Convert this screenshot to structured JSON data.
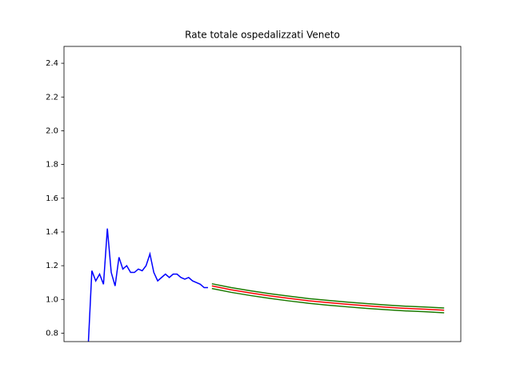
{
  "chart_data": {
    "type": "line",
    "title": "Rate totale ospedalizzati Veneto",
    "xlim": [
      -6.2,
      96.3
    ],
    "ylim": [
      0.75,
      2.5
    ],
    "yticks": [
      0.8,
      {
        "value": 1.0,
        "label": "1.0"
      },
      1.2,
      1.4,
      1.6,
      1.8,
      {
        "value": 2.0,
        "label": "2.0"
      },
      2.2,
      2.4
    ],
    "series": [
      {
        "color": "#0000ff",
        "x": [
          0,
          1,
          2,
          3,
          4,
          5,
          6,
          7,
          8,
          9,
          10,
          11,
          12,
          13,
          14,
          15,
          16,
          17,
          18,
          19,
          20,
          21,
          22,
          23,
          24,
          25,
          26,
          27,
          28,
          29,
          30,
          31
        ],
        "values": [
          0.7,
          1.17,
          1.11,
          1.15,
          1.09,
          1.42,
          1.16,
          1.08,
          1.25,
          1.18,
          1.2,
          1.16,
          1.16,
          1.18,
          1.17,
          1.2,
          1.27,
          1.16,
          1.11,
          1.13,
          1.15,
          1.13,
          1.15,
          1.15,
          1.13,
          1.12,
          1.13,
          1.11,
          1.1,
          1.09,
          1.07,
          1.07
        ]
      },
      {
        "color": "#1a7a00",
        "x": [
          32,
          37,
          42,
          47,
          52,
          57,
          62,
          67,
          72,
          77,
          82,
          87,
          92
        ],
        "values": [
          1.093,
          1.07,
          1.051,
          1.034,
          1.019,
          1.005,
          0.994,
          0.984,
          0.975,
          0.967,
          0.96,
          0.955,
          0.949
        ]
      },
      {
        "color": "#ff0000",
        "x": [
          32,
          37,
          42,
          47,
          52,
          57,
          62,
          67,
          72,
          77,
          82,
          87,
          92
        ],
        "values": [
          1.08,
          1.057,
          1.038,
          1.021,
          1.006,
          0.992,
          0.981,
          0.971,
          0.962,
          0.954,
          0.947,
          0.942,
          0.936
        ]
      },
      {
        "color": "#1a7a00",
        "x": [
          32,
          37,
          42,
          47,
          52,
          57,
          62,
          67,
          72,
          77,
          82,
          87,
          92
        ],
        "values": [
          1.065,
          1.042,
          1.023,
          1.006,
          0.991,
          0.977,
          0.966,
          0.956,
          0.947,
          0.939,
          0.932,
          0.927,
          0.921
        ]
      }
    ]
  }
}
